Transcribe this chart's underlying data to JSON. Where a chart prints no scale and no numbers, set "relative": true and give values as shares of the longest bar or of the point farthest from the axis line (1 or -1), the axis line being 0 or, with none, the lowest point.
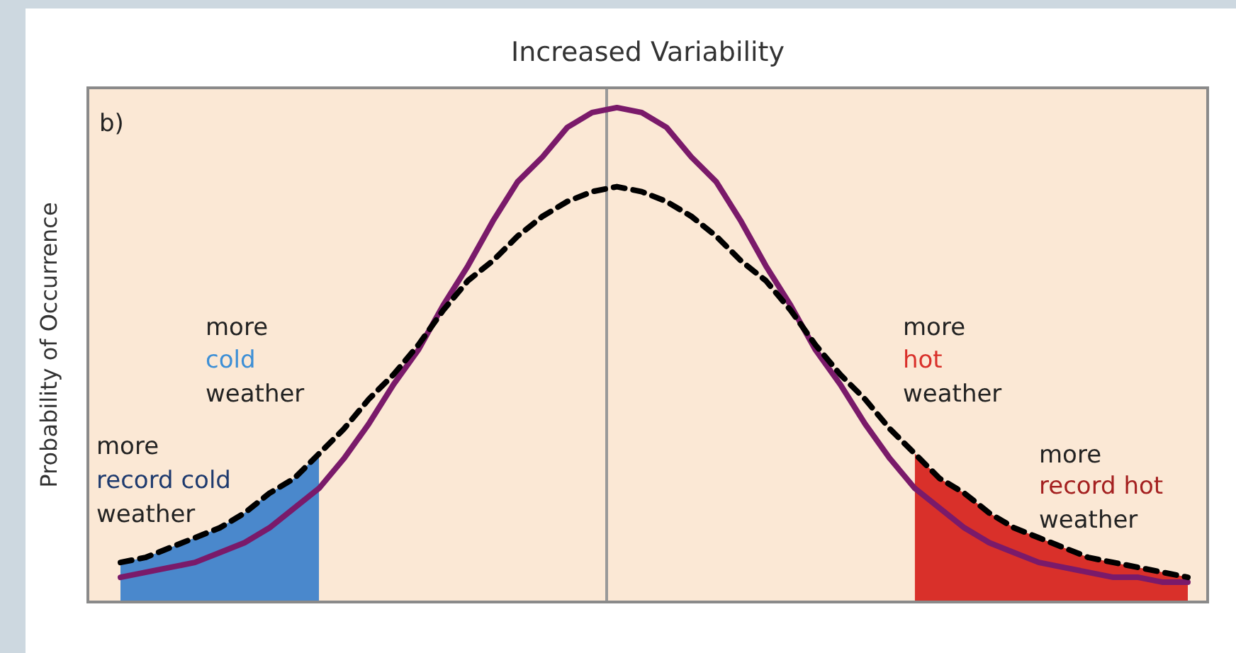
{
  "chart_data": {
    "type": "line",
    "title": "Increased Variability",
    "ylabel": "Probability of Occurrence",
    "relative": true,
    "legend": false,
    "marker": "none",
    "categories": [
      null,
      null,
      null,
      null,
      null,
      null,
      null,
      null,
      null,
      null,
      null,
      null,
      null,
      null,
      null,
      null,
      null,
      null,
      null,
      null,
      null,
      null,
      null,
      null,
      null,
      null,
      null,
      null,
      null,
      null,
      null,
      null,
      null,
      null,
      null,
      null,
      null,
      null,
      null,
      null,
      null,
      null,
      null,
      null
    ],
    "series": [
      {
        "type": "area",
        "color": "#4a88cc",
        "values": [
          0.08,
          0.09,
          0.11,
          0.13,
          0.15,
          0.18,
          0.22,
          0.25,
          0.3,
          null,
          null,
          null,
          null,
          null,
          null,
          null,
          null,
          null,
          null,
          null,
          null,
          null,
          null,
          null,
          null,
          null,
          null,
          null,
          null,
          null,
          null,
          null,
          null,
          null,
          null,
          null,
          null,
          null,
          null,
          null,
          null,
          null,
          null,
          null
        ]
      },
      {
        "type": "area",
        "color": "#d9302a",
        "values": [
          null,
          null,
          null,
          null,
          null,
          null,
          null,
          null,
          null,
          null,
          null,
          null,
          null,
          null,
          null,
          null,
          null,
          null,
          null,
          null,
          null,
          null,
          null,
          null,
          null,
          null,
          null,
          null,
          null,
          null,
          null,
          null,
          0.3,
          0.25,
          0.22,
          0.18,
          0.15,
          0.13,
          0.11,
          0.09,
          0.08,
          0.07,
          0.06,
          0.05
        ]
      },
      {
        "type": "line",
        "color": "#000000",
        "line_style": "dashed",
        "values": [
          0.08,
          0.09,
          0.11,
          0.13,
          0.15,
          0.18,
          0.22,
          0.25,
          0.3,
          0.35,
          0.41,
          0.46,
          0.52,
          0.59,
          0.65,
          0.69,
          0.74,
          0.78,
          0.81,
          0.83,
          0.84,
          0.83,
          0.81,
          0.78,
          0.74,
          0.69,
          0.65,
          0.59,
          0.52,
          0.46,
          0.41,
          0.35,
          0.3,
          0.25,
          0.22,
          0.18,
          0.15,
          0.13,
          0.11,
          0.09,
          0.08,
          0.07,
          0.06,
          0.05
        ]
      },
      {
        "type": "line",
        "color": "#7a1a6a",
        "line_style": "solid",
        "values": [
          0.05,
          0.06,
          0.07,
          0.08,
          0.1,
          0.12,
          0.15,
          0.19,
          0.23,
          0.29,
          0.36,
          0.44,
          0.51,
          0.6,
          0.68,
          0.77,
          0.85,
          0.9,
          0.96,
          0.99,
          1,
          0.99,
          0.96,
          0.9,
          0.85,
          0.77,
          0.68,
          0.6,
          0.51,
          0.44,
          0.36,
          0.29,
          0.23,
          0.19,
          0.15,
          0.12,
          0.1,
          0.08,
          0.07,
          0.06,
          0.05,
          0.05,
          0.04,
          0.04
        ]
      }
    ],
    "annotations": [
      "b)",
      "more",
      "cold",
      "weather",
      "more",
      "record cold",
      "weather",
      "more",
      "hot",
      "weather",
      "more",
      "record hot",
      "weather"
    ]
  }
}
